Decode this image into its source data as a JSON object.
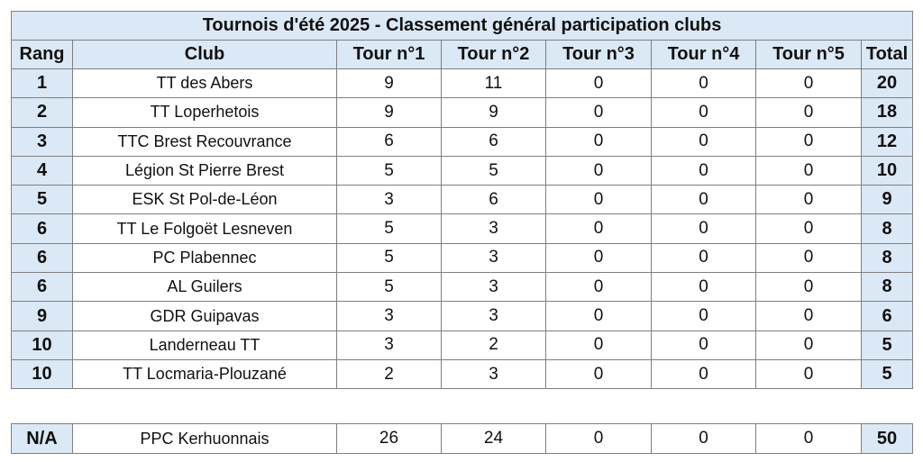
{
  "title": "Tournois d'été 2025 - Classement général participation clubs",
  "headers": [
    "Rang",
    "Club",
    "Tour n°1",
    "Tour n°2",
    "Tour n°3",
    "Tour n°4",
    "Tour n°5",
    "Total"
  ],
  "rows": [
    {
      "rank": "1",
      "club": "TT des Abers",
      "t1": "9",
      "t2": "11",
      "t3": "0",
      "t4": "0",
      "t5": "0",
      "total": "20"
    },
    {
      "rank": "2",
      "club": "TT Loperhetois",
      "t1": "9",
      "t2": "9",
      "t3": "0",
      "t4": "0",
      "t5": "0",
      "total": "18"
    },
    {
      "rank": "3",
      "club": "TTC Brest Recouvrance",
      "t1": "6",
      "t2": "6",
      "t3": "0",
      "t4": "0",
      "t5": "0",
      "total": "12"
    },
    {
      "rank": "4",
      "club": "Légion St Pierre Brest",
      "t1": "5",
      "t2": "5",
      "t3": "0",
      "t4": "0",
      "t5": "0",
      "total": "10"
    },
    {
      "rank": "5",
      "club": "ESK St Pol-de-Léon",
      "t1": "3",
      "t2": "6",
      "t3": "0",
      "t4": "0",
      "t5": "0",
      "total": "9"
    },
    {
      "rank": "6",
      "club": "TT Le Folgoët Lesneven",
      "t1": "5",
      "t2": "3",
      "t3": "0",
      "t4": "0",
      "t5": "0",
      "total": "8"
    },
    {
      "rank": "6",
      "club": "PC Plabennec",
      "t1": "5",
      "t2": "3",
      "t3": "0",
      "t4": "0",
      "t5": "0",
      "total": "8"
    },
    {
      "rank": "6",
      "club": "AL Guilers",
      "t1": "5",
      "t2": "3",
      "t3": "0",
      "t4": "0",
      "t5": "0",
      "total": "8"
    },
    {
      "rank": "9",
      "club": "GDR Guipavas",
      "t1": "3",
      "t2": "3",
      "t3": "0",
      "t4": "0",
      "t5": "0",
      "total": "6"
    },
    {
      "rank": "10",
      "club": "Landerneau TT",
      "t1": "3",
      "t2": "2",
      "t3": "0",
      "t4": "0",
      "t5": "0",
      "total": "5"
    },
    {
      "rank": "10",
      "club": "TT Locmaria-Plouzané",
      "t1": "2",
      "t2": "3",
      "t3": "0",
      "t4": "0",
      "t5": "0",
      "total": "5"
    }
  ],
  "na_row": {
    "rank": "N/A",
    "club": "PPC Kerhuonnais",
    "t1": "26",
    "t2": "24",
    "t3": "0",
    "t4": "0",
    "t5": "0",
    "total": "50"
  }
}
